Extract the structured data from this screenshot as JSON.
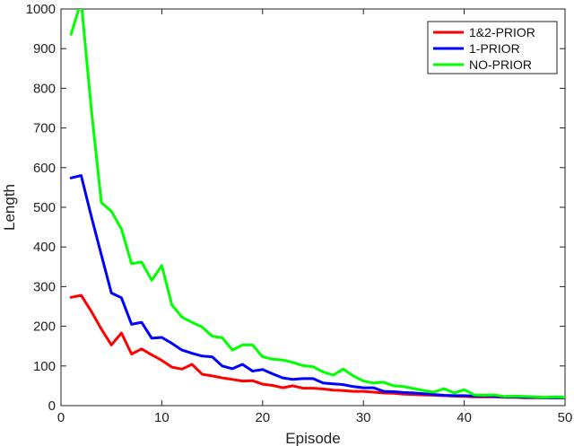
{
  "chart_data": {
    "type": "line",
    "title": "",
    "xlabel": "Episode",
    "ylabel": "Length",
    "xlim": [
      0,
      50
    ],
    "ylim": [
      0,
      1000
    ],
    "xticks": [
      0,
      10,
      20,
      30,
      40,
      50
    ],
    "yticks": [
      0,
      100,
      200,
      300,
      400,
      500,
      600,
      700,
      800,
      900,
      1000
    ],
    "grid": false,
    "legend_position": "top-right",
    "x": [
      1,
      2,
      3,
      4,
      5,
      6,
      7,
      8,
      9,
      10,
      11,
      12,
      13,
      14,
      15,
      16,
      17,
      18,
      19,
      20,
      21,
      22,
      23,
      24,
      25,
      26,
      27,
      28,
      29,
      30,
      31,
      32,
      33,
      34,
      35,
      36,
      37,
      38,
      39,
      40,
      41,
      42,
      43,
      44,
      45,
      46,
      47,
      48,
      49,
      50
    ],
    "series": [
      {
        "name": "1&2-PRIOR",
        "color": "#ff0000",
        "values": [
          273,
          278,
          238,
          193,
          153,
          183,
          130,
          143,
          128,
          114,
          97,
          92,
          104,
          79,
          75,
          70,
          66,
          62,
          63,
          54,
          51,
          45,
          50,
          44,
          44,
          42,
          39,
          38,
          36,
          36,
          34,
          32,
          31,
          29,
          28,
          27,
          26,
          25,
          24,
          23,
          22,
          22,
          22,
          21,
          21,
          20,
          20,
          20,
          20,
          20
        ]
      },
      {
        "name": "1-PRIOR",
        "color": "#0000ff",
        "values": [
          574,
          580,
          478,
          380,
          284,
          272,
          205,
          210,
          170,
          172,
          157,
          140,
          132,
          125,
          123,
          100,
          93,
          104,
          87,
          91,
          80,
          70,
          66,
          68,
          68,
          57,
          55,
          53,
          48,
          45,
          45,
          36,
          35,
          33,
          32,
          30,
          28,
          26,
          25,
          25,
          24,
          24,
          23,
          22,
          22,
          21,
          21,
          20,
          20,
          20
        ]
      },
      {
        "name": "NO-PRIOR",
        "color": "#00ff00",
        "values": [
          936,
          1020,
          750,
          512,
          490,
          445,
          358,
          362,
          316,
          353,
          254,
          223,
          210,
          198,
          175,
          171,
          140,
          153,
          153,
          123,
          117,
          115,
          109,
          101,
          98,
          85,
          77,
          92,
          75,
          62,
          57,
          59,
          50,
          48,
          43,
          38,
          34,
          43,
          32,
          40,
          27,
          26,
          27,
          23,
          24,
          23,
          22,
          21,
          22,
          21
        ]
      }
    ]
  }
}
